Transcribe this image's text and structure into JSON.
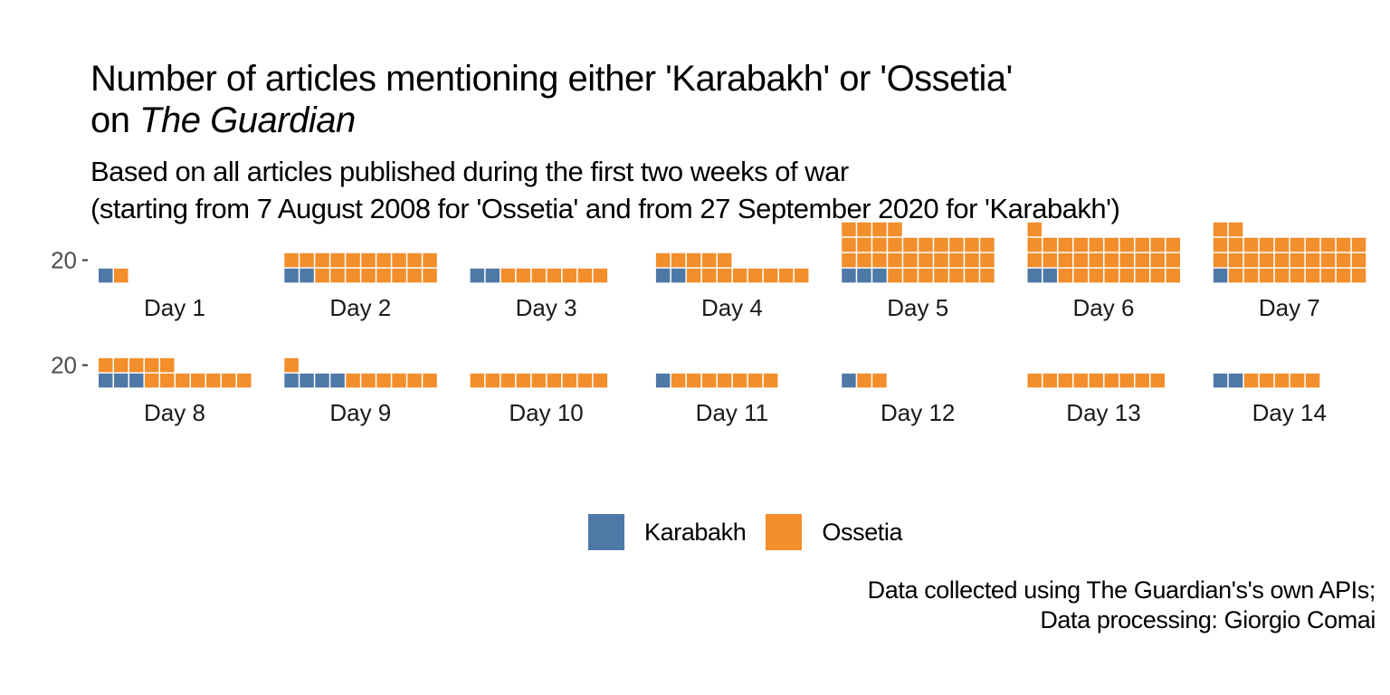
{
  "title": {
    "line1": "Number of articles mentioning either 'Karabakh' or 'Ossetia'",
    "line2_prefix": "on ",
    "line2_italic": "The Guardian"
  },
  "subtitle": {
    "line1": "Based on all articles published during the first two weeks of war",
    "line2": "(starting from 7 August 2008 for 'Ossetia' and from 27 September 2020 for 'Karabakh')"
  },
  "caption": {
    "line1": "Data collected using The Guardian's's own APIs;",
    "line2": "Data processing: Giorgio Comai"
  },
  "legend": [
    {
      "label": "Karabakh",
      "color": "#4E79A7"
    },
    {
      "label": "Ossetia",
      "color": "#F28E2B"
    }
  ],
  "chart_data": {
    "type": "waffle",
    "units_per_row": 10,
    "y_tick_label": "20",
    "y_tick_value": 20,
    "series": [
      {
        "name": "Karabakh",
        "color": "#4E79A7"
      },
      {
        "name": "Ossetia",
        "color": "#F28E2B"
      }
    ],
    "panels": [
      {
        "label": "Day 1",
        "Karabakh": 1,
        "Ossetia": 1
      },
      {
        "label": "Day 2",
        "Karabakh": 2,
        "Ossetia": 18
      },
      {
        "label": "Day 3",
        "Karabakh": 2,
        "Ossetia": 7
      },
      {
        "label": "Day 4",
        "Karabakh": 2,
        "Ossetia": 13
      },
      {
        "label": "Day 5",
        "Karabakh": 3,
        "Ossetia": 31
      },
      {
        "label": "Day 6",
        "Karabakh": 2,
        "Ossetia": 29
      },
      {
        "label": "Day 7",
        "Karabakh": 1,
        "Ossetia": 31
      },
      {
        "label": "Day 8",
        "Karabakh": 3,
        "Ossetia": 12
      },
      {
        "label": "Day 9",
        "Karabakh": 4,
        "Ossetia": 7
      },
      {
        "label": "Day 10",
        "Karabakh": 0,
        "Ossetia": 9
      },
      {
        "label": "Day 11",
        "Karabakh": 1,
        "Ossetia": 7
      },
      {
        "label": "Day 12",
        "Karabakh": 1,
        "Ossetia": 2
      },
      {
        "label": "Day 13",
        "Karabakh": 0,
        "Ossetia": 9
      },
      {
        "label": "Day 14",
        "Karabakh": 2,
        "Ossetia": 5
      }
    ]
  }
}
